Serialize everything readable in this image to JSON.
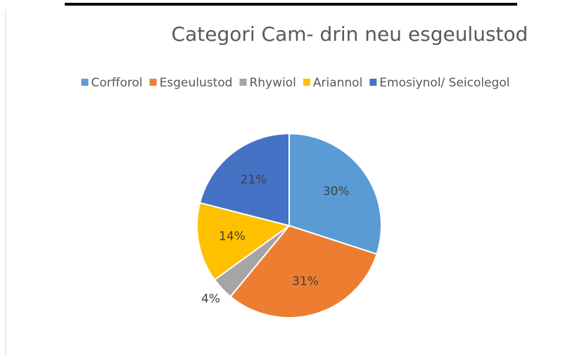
{
  "chart_data": {
    "type": "pie",
    "title": "Categori Cam- drin neu esgeulustod",
    "categories": [
      "Corfforol",
      "Esgeulustod",
      "Rhywiol",
      "Ariannol",
      "Emosiynol/ Seicolegol"
    ],
    "values": [
      30,
      31,
      4,
      14,
      21
    ],
    "value_labels": [
      "30%",
      "31%",
      "4%",
      "14%",
      "21%"
    ],
    "colors": [
      "#5b9bd5",
      "#ed7d31",
      "#a5a5a5",
      "#ffc000",
      "#4472c4"
    ],
    "legend": "top"
  }
}
